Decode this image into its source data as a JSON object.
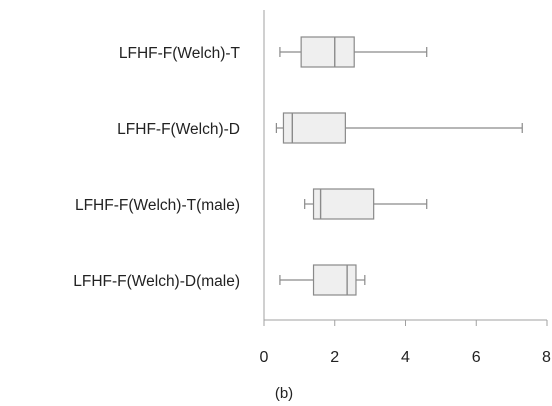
{
  "chart_data": {
    "type": "boxplot",
    "orientation": "horizontal",
    "caption": "(b)",
    "xlim": [
      0,
      8
    ],
    "xticks": [
      0,
      2,
      4,
      6,
      8
    ],
    "grid": false,
    "colors": {
      "box_fill": "#efefef",
      "stroke": "#8a8a8a",
      "axis": "#a0a0a0"
    },
    "categories": [
      "LFHF-F(Welch)-T",
      "LFHF-F(Welch)-D",
      "LFHF-F(Welch)-T(male)",
      "LFHF-F(Welch)-D(male)"
    ],
    "series": [
      {
        "label": "LFHF-F(Welch)-T",
        "min": 0.45,
        "q1": 1.05,
        "median": 2.0,
        "q3": 2.55,
        "max": 4.6
      },
      {
        "label": "LFHF-F(Welch)-D",
        "min": 0.35,
        "q1": 0.55,
        "median": 0.8,
        "q3": 2.3,
        "max": 7.3
      },
      {
        "label": "LFHF-F(Welch)-T(male)",
        "min": 1.15,
        "q1": 1.4,
        "median": 1.6,
        "q3": 3.1,
        "max": 4.6
      },
      {
        "label": "LFHF-F(Welch)-D(male)",
        "min": 0.45,
        "q1": 1.4,
        "median": 2.35,
        "q3": 2.6,
        "max": 2.85
      }
    ]
  }
}
